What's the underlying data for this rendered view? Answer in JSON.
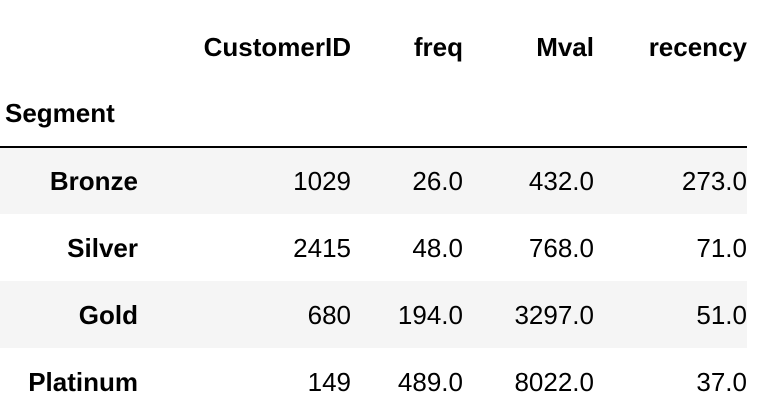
{
  "table": {
    "index_name": "Segment",
    "columns": [
      "CustomerID",
      "freq",
      "Mval",
      "recency"
    ],
    "rows": [
      {
        "index": "Bronze",
        "values": [
          "1029",
          "26.0",
          "432.0",
          "273.0"
        ]
      },
      {
        "index": "Silver",
        "values": [
          "2415",
          "48.0",
          "768.0",
          "71.0"
        ]
      },
      {
        "index": "Gold",
        "values": [
          "680",
          "194.0",
          "3297.0",
          "51.0"
        ]
      },
      {
        "index": "Platinum",
        "values": [
          "149",
          "489.0",
          "8022.0",
          "37.0"
        ]
      }
    ]
  },
  "colors": {
    "stripe": "#f5f5f5",
    "text": "#000000",
    "rule": "#000000"
  }
}
